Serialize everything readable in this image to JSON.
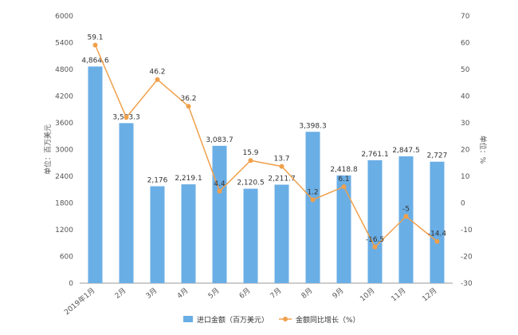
{
  "chart_data": {
    "type": "bar",
    "categories": [
      "2019年1月",
      "2月",
      "3月",
      "4月",
      "5月",
      "6月",
      "7月",
      "8月",
      "9月",
      "10月",
      "11月",
      "12月"
    ],
    "series": [
      {
        "name": "进口金额（百万美元）",
        "type": "bar",
        "axis": "left",
        "color": "#6aaee6",
        "values": [
          4864.6,
          3593.3,
          2176,
          2219.1,
          3083.7,
          2120.5,
          2211.7,
          3398.3,
          2418.8,
          2761.1,
          2847.5,
          2727
        ],
        "labels": [
          "4,864.6",
          "3,593.3",
          "2,176",
          "2,219.1",
          "3,083.7",
          "2,120.5",
          "2,211.7",
          "3,398.3",
          "2,418.8",
          "2,761.1",
          "2,847.5",
          "2,727"
        ]
      },
      {
        "name": "金额同比增长（%）",
        "type": "line",
        "axis": "right",
        "color": "#f0a04b",
        "values": [
          59.1,
          32,
          46.2,
          36.2,
          4.4,
          15.9,
          13.7,
          1.2,
          6.1,
          -16.5,
          -5,
          -14.4
        ],
        "labels": [
          "59.1",
          "",
          "46.2",
          "36.2",
          "4.4",
          "15.9",
          "13.7",
          "1.2",
          "6.1",
          "-16.5",
          "-5",
          "-14.4"
        ]
      }
    ],
    "left_axis": {
      "label": "单位：百万美元",
      "min": 0,
      "max": 6000,
      "ticks": [
        0,
        600,
        1200,
        1800,
        2400,
        3000,
        3600,
        4200,
        4800,
        5400,
        6000
      ]
    },
    "right_axis": {
      "label": "单位：%",
      "min": -30,
      "max": 70,
      "ticks": [
        -30,
        -20,
        -10,
        0,
        10,
        20,
        30,
        40,
        50,
        60,
        70
      ]
    },
    "legend_position": "bottom",
    "grid": false
  }
}
